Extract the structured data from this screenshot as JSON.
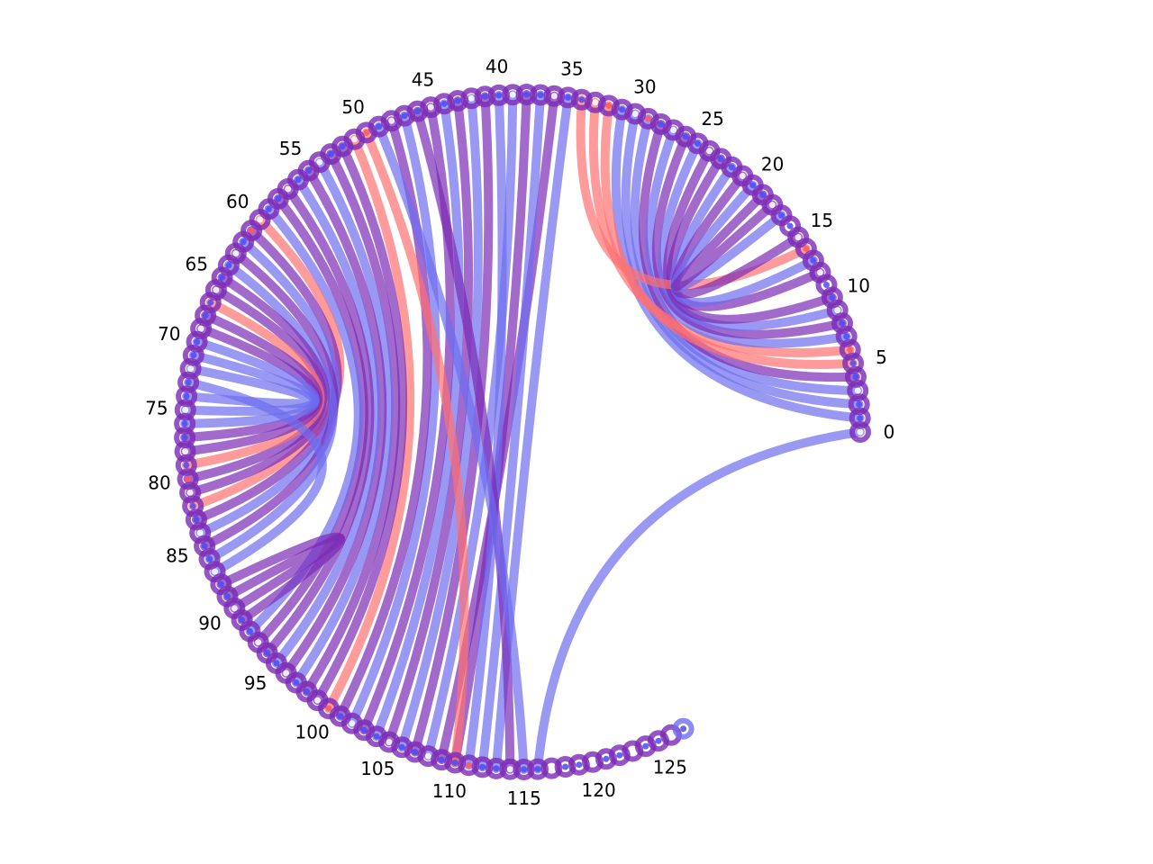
{
  "diagram": {
    "type": "circular-arc-diagram",
    "node_count": 128,
    "tick_labels": [
      "0",
      "5",
      "10",
      "15",
      "20",
      "25",
      "30",
      "35",
      "40",
      "45",
      "50",
      "55",
      "60",
      "65",
      "70",
      "75",
      "80",
      "85",
      "90",
      "95",
      "100",
      "105",
      "110",
      "115",
      "120",
      "125"
    ],
    "colors": {
      "blue": "#6e6ef0",
      "purple": "#7a2bb5",
      "red": "#ff7070",
      "node_inner_blue": "#4b4bf5",
      "node_inner_red": "#ff5a5a"
    },
    "red_nodes": [
      6,
      14,
      29,
      32,
      50,
      61,
      80,
      100,
      111
    ],
    "links": [
      {
        "from": 0,
        "to": 116,
        "color": "blue"
      },
      {
        "from": 1,
        "to": 31,
        "color": "blue"
      },
      {
        "from": 2,
        "to": 30,
        "color": "blue"
      },
      {
        "from": 3,
        "to": 29,
        "color": "blue"
      },
      {
        "from": 4,
        "to": 28,
        "color": "purple"
      },
      {
        "from": 5,
        "to": 32,
        "color": "red"
      },
      {
        "from": 6,
        "to": 33,
        "color": "red"
      },
      {
        "from": 7,
        "to": 27,
        "color": "blue"
      },
      {
        "from": 8,
        "to": 26,
        "color": "purple"
      },
      {
        "from": 9,
        "to": 25,
        "color": "blue"
      },
      {
        "from": 10,
        "to": 24,
        "color": "purple"
      },
      {
        "from": 12,
        "to": 23,
        "color": "purple"
      },
      {
        "from": 13,
        "to": 22,
        "color": "blue"
      },
      {
        "from": 14,
        "to": 34,
        "color": "red"
      },
      {
        "from": 15,
        "to": 21,
        "color": "purple"
      },
      {
        "from": 17,
        "to": 20,
        "color": "blue"
      },
      {
        "from": 18,
        "to": 19,
        "color": "purple"
      },
      {
        "from": 35,
        "to": 113,
        "color": "blue"
      },
      {
        "from": 36,
        "to": 109,
        "color": "purple"
      },
      {
        "from": 37,
        "to": 112,
        "color": "blue"
      },
      {
        "from": 38,
        "to": 110,
        "color": "purple"
      },
      {
        "from": 39,
        "to": 108,
        "color": "blue"
      },
      {
        "from": 40,
        "to": 111,
        "color": "blue"
      },
      {
        "from": 41,
        "to": 107,
        "color": "purple"
      },
      {
        "from": 42,
        "to": 106,
        "color": "blue"
      },
      {
        "from": 43,
        "to": 105,
        "color": "purple"
      },
      {
        "from": 44,
        "to": 104,
        "color": "blue"
      },
      {
        "from": 45,
        "to": 103,
        "color": "purple"
      },
      {
        "from": 46,
        "to": 114,
        "color": "purple"
      },
      {
        "from": 47,
        "to": 102,
        "color": "blue"
      },
      {
        "from": 48,
        "to": 101,
        "color": "purple"
      },
      {
        "from": 49,
        "to": 115,
        "color": "blue"
      },
      {
        "from": 50,
        "to": 110,
        "color": "red"
      },
      {
        "from": 51,
        "to": 100,
        "color": "red"
      },
      {
        "from": 52,
        "to": 99,
        "color": "purple"
      },
      {
        "from": 53,
        "to": 98,
        "color": "purple"
      },
      {
        "from": 54,
        "to": 97,
        "color": "blue"
      },
      {
        "from": 55,
        "to": 96,
        "color": "purple"
      },
      {
        "from": 56,
        "to": 95,
        "color": "blue"
      },
      {
        "from": 57,
        "to": 94,
        "color": "purple"
      },
      {
        "from": 58,
        "to": 93,
        "color": "purple"
      },
      {
        "from": 59,
        "to": 92,
        "color": "blue"
      },
      {
        "from": 60,
        "to": 82,
        "color": "red"
      },
      {
        "from": 61,
        "to": 83,
        "color": "purple"
      },
      {
        "from": 62,
        "to": 84,
        "color": "blue"
      },
      {
        "from": 63,
        "to": 85,
        "color": "purple"
      },
      {
        "from": 64,
        "to": 86,
        "color": "blue"
      },
      {
        "from": 65,
        "to": 81,
        "color": "purple"
      },
      {
        "from": 66,
        "to": 80,
        "color": "purple"
      },
      {
        "from": 67,
        "to": 79,
        "color": "red"
      },
      {
        "from": 68,
        "to": 78,
        "color": "purple"
      },
      {
        "from": 69,
        "to": 77,
        "color": "purple"
      },
      {
        "from": 70,
        "to": 76,
        "color": "blue"
      },
      {
        "from": 71,
        "to": 75,
        "color": "blue"
      },
      {
        "from": 72,
        "to": 74,
        "color": "blue"
      },
      {
        "from": 73,
        "to": 87,
        "color": "blue"
      },
      {
        "from": 88,
        "to": 91,
        "color": "purple"
      },
      {
        "from": 89,
        "to": 90,
        "color": "purple"
      }
    ]
  }
}
